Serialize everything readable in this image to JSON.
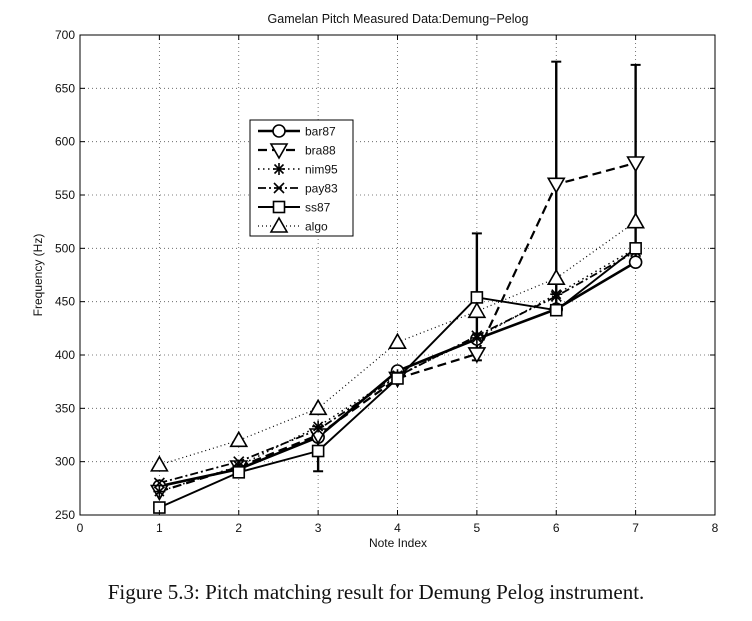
{
  "chart_data": {
    "type": "line",
    "title": "Gamelan Pitch Measured Data:Demung−Pelog",
    "xlabel": "Note Index",
    "ylabel": "Frequency (Hz)",
    "xlim": [
      0,
      8
    ],
    "ylim": [
      250,
      700
    ],
    "xticks": [
      0,
      1,
      2,
      3,
      4,
      5,
      6,
      7,
      8
    ],
    "yticks": [
      250,
      300,
      350,
      400,
      450,
      500,
      550,
      600,
      650,
      700
    ],
    "grid": true,
    "legend_position": "upper-left",
    "x": [
      1,
      2,
      3,
      4,
      5,
      6,
      7
    ],
    "series": [
      {
        "name": "bar87",
        "marker": "circle",
        "line": "solid-thick",
        "values": [
          277,
          293,
          323,
          385,
          415,
          443,
          487
        ]
      },
      {
        "name": "bra88",
        "marker": "triangle-down",
        "line": "dashed",
        "values": [
          272,
          295,
          325,
          378,
          401,
          560,
          580
        ]
      },
      {
        "name": "nim95",
        "marker": "asterisk",
        "line": "dotted",
        "values": [
          272,
          296,
          333,
          381,
          416,
          457,
          500
        ]
      },
      {
        "name": "pay83",
        "marker": "x",
        "line": "dashdot",
        "values": [
          280,
          300,
          330,
          380,
          418,
          455,
          497
        ]
      },
      {
        "name": "ss87",
        "marker": "square",
        "line": "solid",
        "values": [
          257,
          290,
          310,
          378,
          454,
          442,
          500
        ]
      },
      {
        "name": "algo",
        "marker": "triangle-up",
        "line": "dotted-light",
        "values": [
          297,
          320,
          350,
          412,
          441,
          472,
          525
        ]
      }
    ],
    "error_bars": [
      {
        "x": 3,
        "low": 291,
        "high": 330
      },
      {
        "x": 5,
        "low": 395,
        "high": 514
      },
      {
        "x": 6,
        "low": 443,
        "high": 675
      },
      {
        "x": 7,
        "low": 490,
        "high": 672
      }
    ]
  },
  "caption": "Figure 5.3: Pitch matching result for Demung Pelog instrument."
}
